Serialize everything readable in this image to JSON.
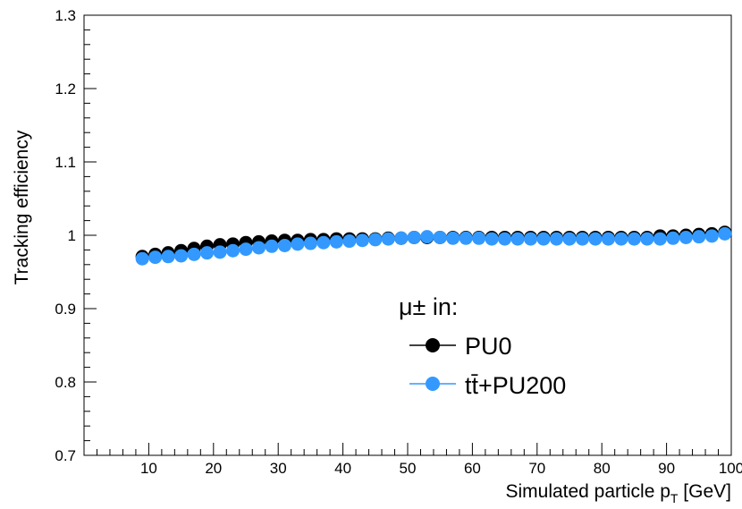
{
  "chart_data": {
    "type": "scatter",
    "title": "",
    "xlabel": {
      "main": "Simulated particle p",
      "sub": "T",
      "unit": " [GeV]"
    },
    "ylabel": "Tracking efficiency",
    "xlim": [
      0,
      100
    ],
    "ylim": [
      0.7,
      1.3
    ],
    "xticks": [
      "10",
      "20",
      "30",
      "40",
      "50",
      "60",
      "70",
      "80",
      "90",
      "100"
    ],
    "yticks": [
      "0.7",
      "0.8",
      "0.9",
      "1",
      "1.1",
      "1.2",
      "1.3"
    ],
    "grid": false,
    "legend": {
      "placement": "bottom-right",
      "header": "μ± in:",
      "entries": [
        "PU0",
        "tt̄+PU200"
      ]
    },
    "series": [
      {
        "name": "PU0",
        "color": "#000000",
        "x": [
          9,
          11,
          13,
          15,
          17,
          19,
          21,
          23,
          25,
          27,
          29,
          31,
          33,
          35,
          37,
          39,
          41,
          43,
          45,
          47,
          49,
          51,
          53,
          55,
          57,
          59,
          61,
          63,
          65,
          67,
          69,
          71,
          73,
          75,
          77,
          79,
          81,
          83,
          85,
          87,
          89,
          91,
          93,
          95,
          97,
          99
        ],
        "y": [
          0.971,
          0.974,
          0.976,
          0.979,
          0.982,
          0.985,
          0.987,
          0.988,
          0.99,
          0.991,
          0.992,
          0.993,
          0.993,
          0.994,
          0.994,
          0.995,
          0.995,
          0.995,
          0.995,
          0.996,
          0.996,
          0.997,
          0.997,
          0.997,
          0.997,
          0.997,
          0.997,
          0.997,
          0.997,
          0.997,
          0.997,
          0.997,
          0.997,
          0.997,
          0.997,
          0.997,
          0.997,
          0.997,
          0.997,
          0.997,
          0.999,
          0.999,
          1.0,
          1.001,
          1.002,
          1.004
        ]
      },
      {
        "name": "tt̄+PU200",
        "color": "#3399ff",
        "x": [
          9,
          11,
          13,
          15,
          17,
          19,
          21,
          23,
          25,
          27,
          29,
          31,
          33,
          35,
          37,
          39,
          41,
          43,
          45,
          47,
          49,
          51,
          53,
          55,
          57,
          59,
          61,
          63,
          65,
          67,
          69,
          71,
          73,
          75,
          77,
          79,
          81,
          83,
          85,
          87,
          89,
          91,
          93,
          95,
          97,
          99
        ],
        "y": [
          0.968,
          0.97,
          0.971,
          0.972,
          0.974,
          0.976,
          0.977,
          0.979,
          0.981,
          0.983,
          0.985,
          0.986,
          0.988,
          0.989,
          0.99,
          0.991,
          0.992,
          0.993,
          0.994,
          0.995,
          0.996,
          0.997,
          0.998,
          0.997,
          0.996,
          0.996,
          0.996,
          0.995,
          0.995,
          0.995,
          0.995,
          0.995,
          0.995,
          0.995,
          0.995,
          0.995,
          0.995,
          0.995,
          0.995,
          0.995,
          0.995,
          0.996,
          0.997,
          0.998,
          0.999,
          1.002
        ]
      }
    ]
  }
}
